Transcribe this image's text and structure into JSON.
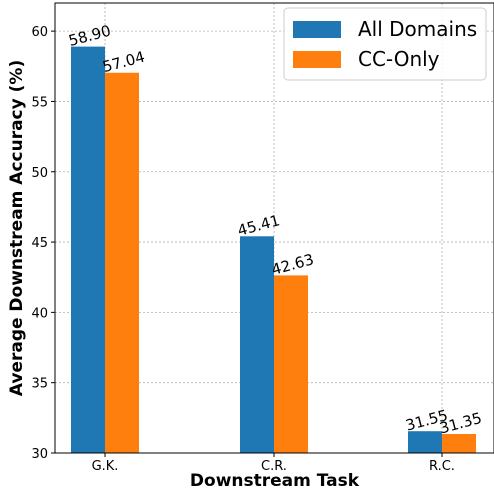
{
  "chart_data": {
    "type": "bar",
    "title": "",
    "xlabel": "Downstream Task",
    "ylabel": "Average Downstream Accuracy (%)",
    "categories": [
      "G.K.",
      "C.R.",
      "R.C."
    ],
    "ylim": [
      30,
      62
    ],
    "yticks": [
      30,
      35,
      40,
      45,
      50,
      55,
      60
    ],
    "grid": true,
    "legend_position": "top-right",
    "series": [
      {
        "name": "All Domains",
        "color": "#1f77b4",
        "values": [
          58.9,
          45.41,
          31.55
        ],
        "labels": [
          "58.90",
          "45.41",
          "31.55"
        ]
      },
      {
        "name": "CC-Only",
        "color": "#ff7f0e",
        "values": [
          57.04,
          42.63,
          31.35
        ],
        "labels": [
          "57.04",
          "42.63",
          "31.35"
        ]
      }
    ]
  }
}
